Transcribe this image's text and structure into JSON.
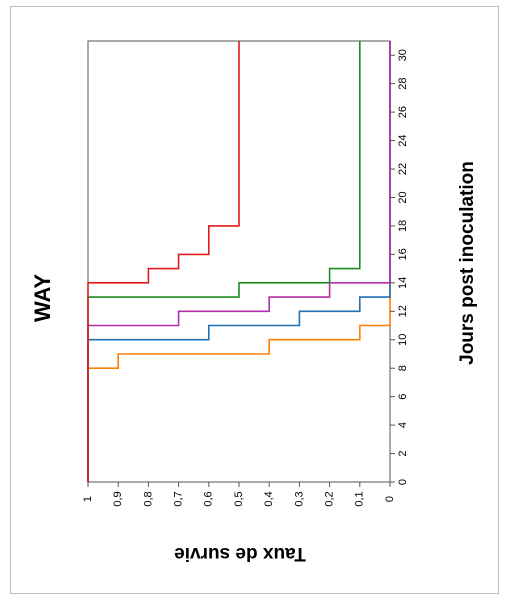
{
  "chart_data": {
    "type": "line",
    "step": true,
    "orientation": "rotated-90-clockwise",
    "title": "WAY",
    "xlabel": "Jours post inoculation",
    "ylabel": "Taux de survie",
    "xlim": [
      0,
      31
    ],
    "ylim": [
      0,
      1
    ],
    "x_ticks": [
      "0",
      "2",
      "4",
      "6",
      "8",
      "10",
      "12",
      "14",
      "16",
      "18",
      "20",
      "22",
      "24",
      "26",
      "28",
      "30"
    ],
    "y_ticks": [
      "0",
      "0,1",
      "0,2",
      "0,3",
      "0,4",
      "0,5",
      "0,6",
      "0,7",
      "0,8",
      "0,9",
      "1"
    ],
    "grid": false,
    "legend": "none",
    "series": [
      {
        "color": "#ff7f00",
        "points": [
          [
            0,
            1
          ],
          [
            8,
            1
          ],
          [
            8,
            0.9
          ],
          [
            9,
            0.9
          ],
          [
            9,
            0.4
          ],
          [
            10,
            0.4
          ],
          [
            10,
            0.1
          ],
          [
            11,
            0.1
          ],
          [
            11,
            0
          ],
          [
            31,
            0
          ]
        ]
      },
      {
        "color": "#1f6fb5",
        "points": [
          [
            0,
            1
          ],
          [
            10,
            1
          ],
          [
            10,
            0.6
          ],
          [
            11,
            0.6
          ],
          [
            11,
            0.3
          ],
          [
            12,
            0.3
          ],
          [
            12,
            0.1
          ],
          [
            13,
            0.1
          ],
          [
            13,
            0
          ],
          [
            31,
            0
          ]
        ]
      },
      {
        "color": "#b22fa8",
        "points": [
          [
            0,
            1
          ],
          [
            11,
            1
          ],
          [
            11,
            0.7
          ],
          [
            12,
            0.7
          ],
          [
            12,
            0.4
          ],
          [
            13,
            0.4
          ],
          [
            13,
            0.2
          ],
          [
            14,
            0.2
          ],
          [
            14,
            0
          ],
          [
            31,
            0
          ]
        ]
      },
      {
        "color": "#1e8b1e",
        "points": [
          [
            0,
            1
          ],
          [
            13,
            1
          ],
          [
            13,
            0.5
          ],
          [
            14,
            0.5
          ],
          [
            14,
            0.2
          ],
          [
            15,
            0.2
          ],
          [
            15,
            0.1
          ],
          [
            31,
            0.1
          ]
        ]
      },
      {
        "color": "#e31a1c",
        "points": [
          [
            0,
            1
          ],
          [
            14,
            1
          ],
          [
            14,
            0.8
          ],
          [
            15,
            0.8
          ],
          [
            15,
            0.7
          ],
          [
            16,
            0.7
          ],
          [
            16,
            0.6
          ],
          [
            18,
            0.6
          ],
          [
            18,
            0.5
          ],
          [
            31,
            0.5
          ]
        ]
      }
    ]
  }
}
